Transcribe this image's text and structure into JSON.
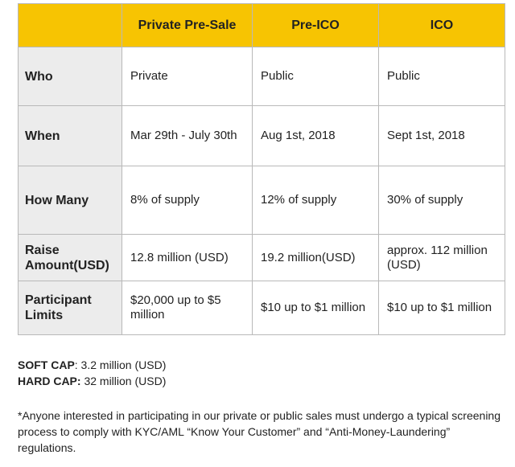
{
  "table": {
    "headers": [
      "",
      "Private Pre-Sale",
      "Pre-ICO",
      "ICO"
    ],
    "rows": [
      {
        "label": "Who",
        "cells": [
          "Private",
          "Public",
          "Public"
        ]
      },
      {
        "label": "When",
        "cells": [
          "Mar 29th - July 30th",
          "Aug 1st, 2018",
          "Sept 1st, 2018"
        ]
      },
      {
        "label": "How Many",
        "cells": [
          "8% of supply",
          "12% of supply",
          "30% of supply"
        ]
      },
      {
        "label": "Raise Amount(USD)",
        "cells": [
          "12.8 million (USD)",
          "19.2 million(USD)",
          "approx. 112 million (USD)"
        ]
      },
      {
        "label": "Participant Limits",
        "cells": [
          "$20,000 up to $5 million",
          "$10 up to $1 million",
          "$10 up to $1 million"
        ]
      }
    ]
  },
  "caps": {
    "soft_label": "SOFT CAP",
    "soft_value": ": 3.2 million (USD)",
    "hard_label": "HARD CAP:",
    "hard_value": " 32 million (USD)"
  },
  "note": "*Anyone interested in participating in our private or public sales must undergo a typical screening process to comply with KYC/AML “Know Your Customer” and “Anti-Money-Laundering” regulations.",
  "colors": {
    "header_bg": "#f7c402",
    "label_bg": "#ececec",
    "border": "#b9b9b9"
  }
}
